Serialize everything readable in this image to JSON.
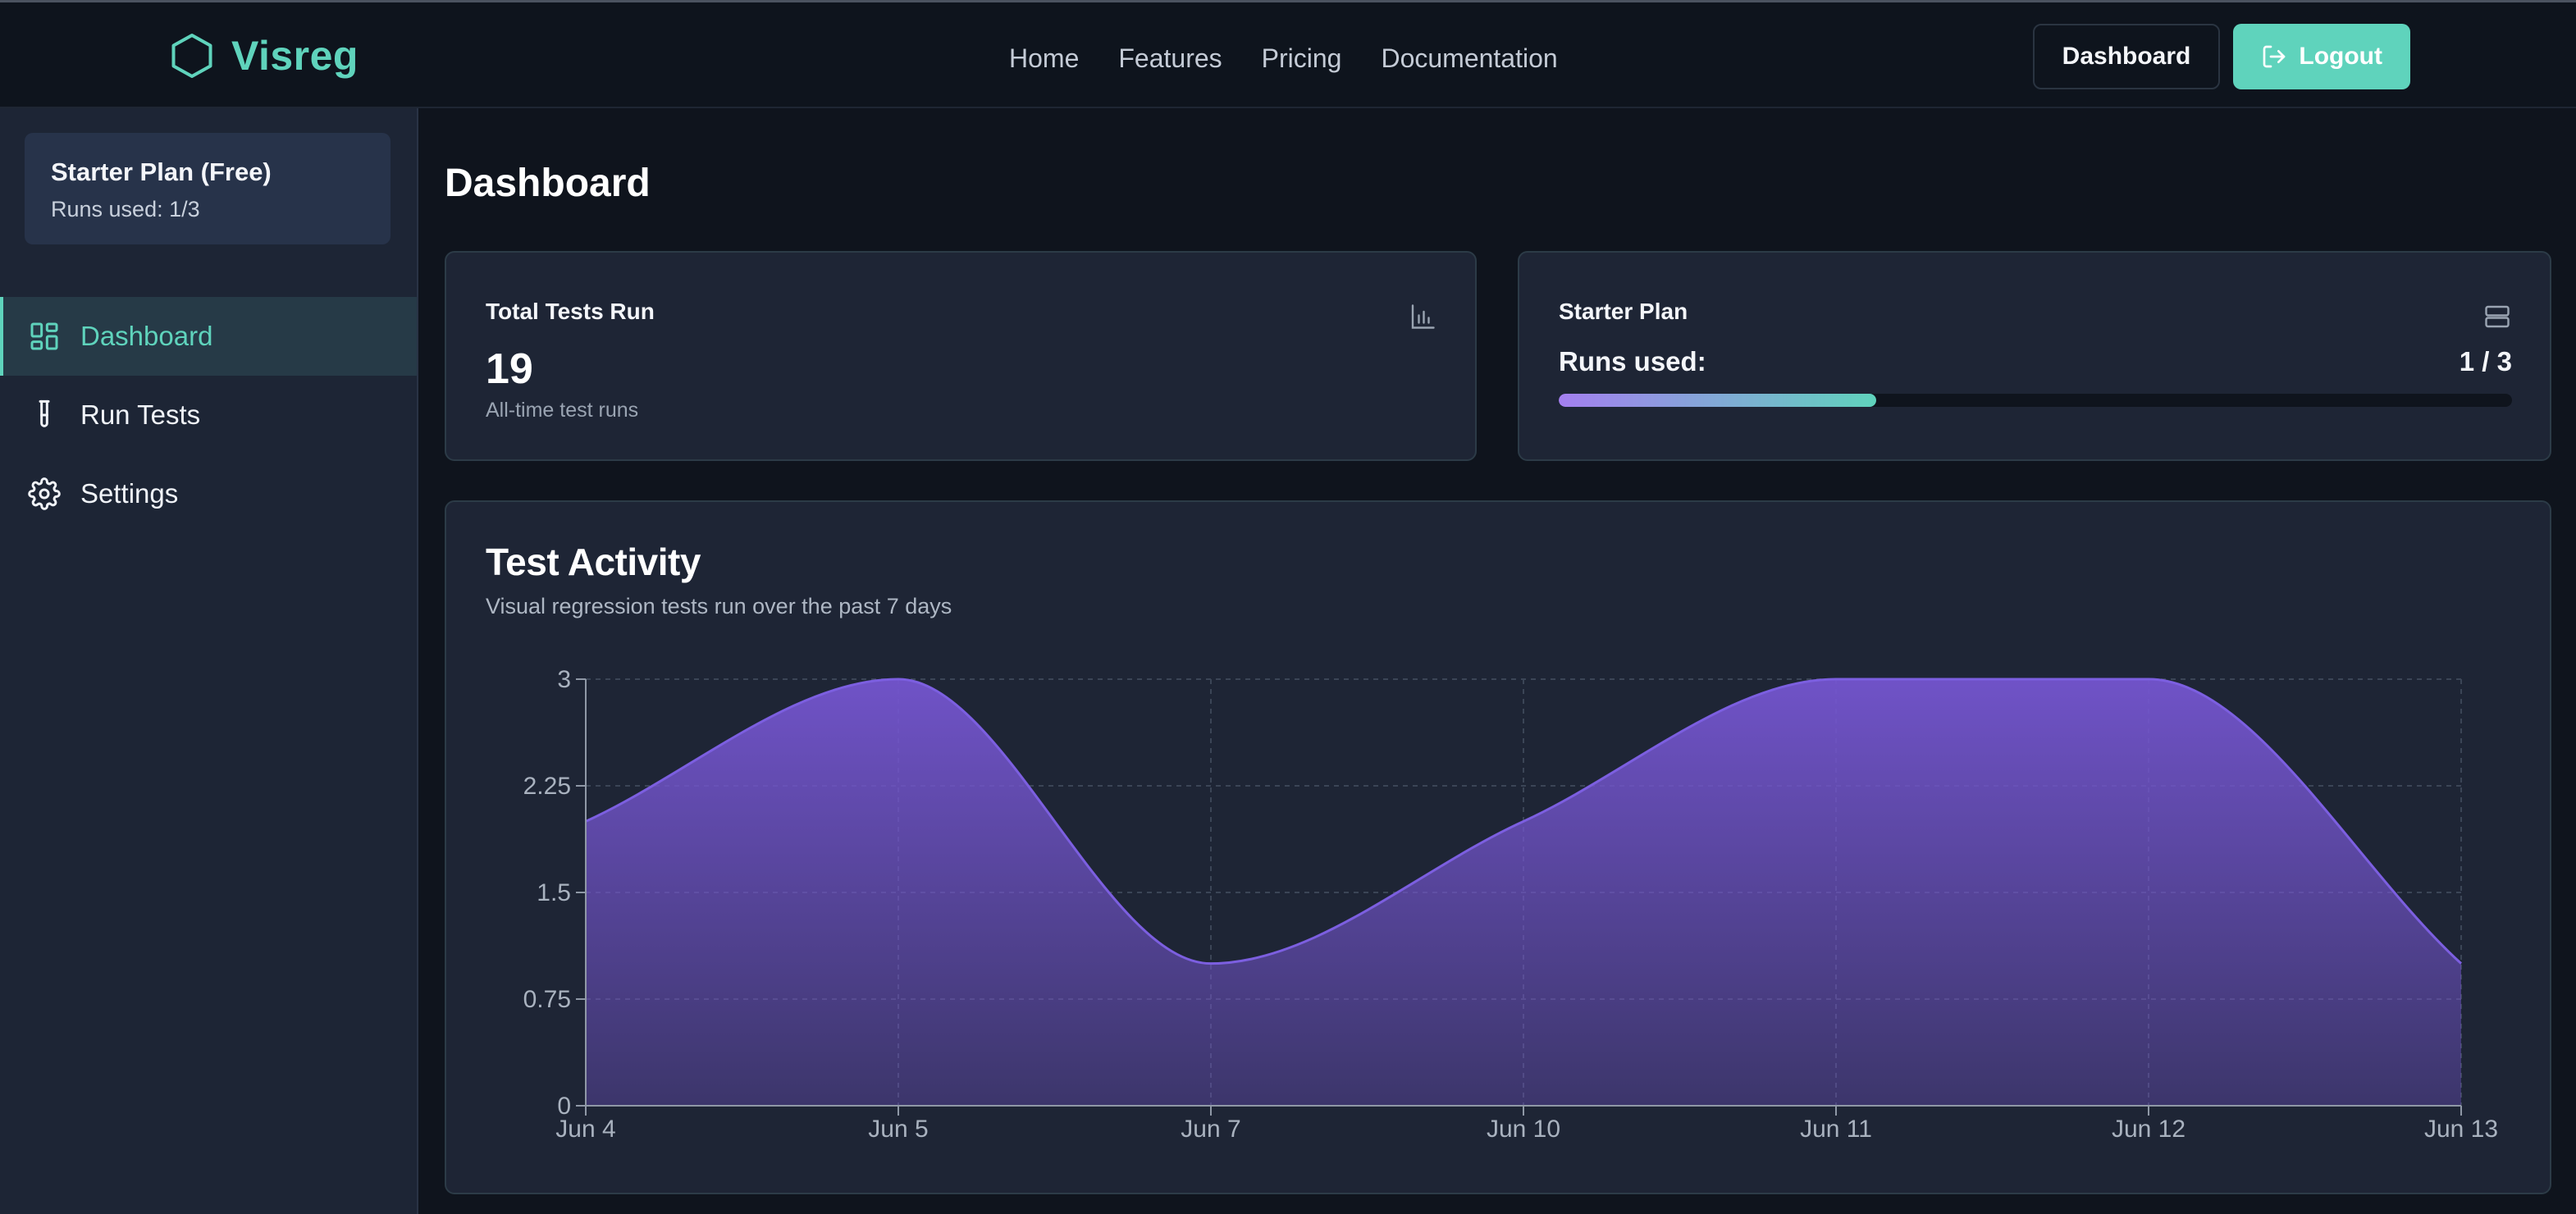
{
  "app": {
    "brand": "Visreg",
    "nav": [
      "Home",
      "Features",
      "Pricing",
      "Documentation"
    ],
    "actions": {
      "dashboard": "Dashboard",
      "logout": "Logout"
    }
  },
  "sidebar": {
    "plan_title": "Starter Plan (Free)",
    "plan_runs": "Runs used: 1/3",
    "items": [
      {
        "label": "Dashboard",
        "icon": "dashboard-icon",
        "active": true
      },
      {
        "label": "Run Tests",
        "icon": "test-tube-icon",
        "active": false
      },
      {
        "label": "Settings",
        "icon": "gear-icon",
        "active": false
      }
    ]
  },
  "main": {
    "title": "Dashboard",
    "tests_card": {
      "label": "Total Tests Run",
      "value": "19",
      "sub": "All-time test runs",
      "icon": "bar-chart-icon"
    },
    "plan_card": {
      "label": "Starter Plan",
      "runs_label": "Runs used:",
      "runs_value": "1 / 3",
      "progress": 0.333,
      "icon": "server-icon"
    }
  },
  "colors": {
    "accent": "#5fd3bc",
    "chart_fill_top": "#7455cf",
    "chart_line": "#7c5fe0",
    "background": "#0f141d",
    "card": "#1e2535"
  },
  "chart_data": {
    "type": "area",
    "title": "Test Activity",
    "subtitle": "Visual regression tests run over the past 7 days",
    "categories": [
      "Jun 4",
      "Jun 5",
      "Jun 7",
      "Jun 10",
      "Jun 11",
      "Jun 12",
      "Jun 13"
    ],
    "values": [
      2,
      3,
      1,
      2,
      3,
      3,
      1
    ],
    "yticks": [
      "0",
      "0.75",
      "1.5",
      "2.25",
      "3"
    ],
    "ylim": [
      0,
      3
    ],
    "grid": true,
    "xlabel": "",
    "ylabel": ""
  }
}
